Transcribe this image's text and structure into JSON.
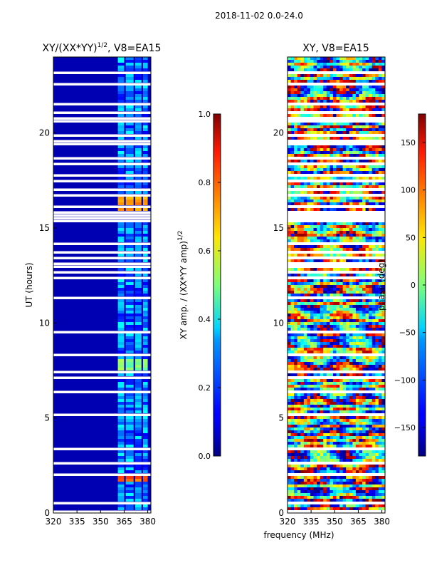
{
  "figure": {
    "suptitle": "2018-11-02 0.0-24.0",
    "shared_xlabel": "frequency (MHz)"
  },
  "chart_data": [
    {
      "type": "heatmap",
      "title_main": "XY/(XX*YY)",
      "title_sup": "1/2",
      "title_rest": ", V8=EA15",
      "ylabel": "UT (hours)",
      "xlim": [
        320,
        382
      ],
      "ylim": [
        0,
        24
      ],
      "xticks": [
        "320",
        "335",
        "350",
        "365",
        "380"
      ],
      "yticks": [
        "0",
        "5",
        "10",
        "15",
        "20"
      ],
      "colorbar": {
        "label": "XY amp. / (XX*YY amp)",
        "label_sup": "1/2",
        "range": [
          0.0,
          1.0
        ],
        "ticks": [
          "0.0",
          "0.2",
          "0.4",
          "0.6",
          "0.8",
          "1.0"
        ]
      },
      "regions": [
        {
          "name": "background",
          "freq_range": [
            320,
            382
          ],
          "value": 0.05
        },
        {
          "name": "band-1",
          "freq_range": [
            361,
            365
          ],
          "value": 0.3
        },
        {
          "name": "band-2",
          "freq_range": [
            366,
            371
          ],
          "value": 0.3
        },
        {
          "name": "band-3",
          "freq_range": [
            372,
            376
          ],
          "value": 0.28
        },
        {
          "name": "band-4",
          "freq_range": [
            377,
            380
          ],
          "value": 0.3
        },
        {
          "name": "flare-early",
          "ut_range": [
            1.6,
            2.0
          ],
          "value": 0.78
        },
        {
          "name": "flare-mid",
          "ut_range": [
            15.8,
            16.6
          ],
          "value": 0.72
        },
        {
          "name": "moderate-mid",
          "ut_range": [
            7.4,
            8.1
          ],
          "value": 0.5
        }
      ]
    },
    {
      "type": "heatmap",
      "title": "XY, V8=EA15",
      "xlim": [
        320,
        382
      ],
      "ylim": [
        0,
        24
      ],
      "xticks": [
        "320",
        "335",
        "350",
        "365",
        "380"
      ],
      "yticks": [
        "0",
        "5",
        "10",
        "15",
        "20"
      ],
      "colorbar": {
        "label": "phase (deg)",
        "range": [
          -180,
          180
        ],
        "ticks": [
          "−150",
          "−100",
          "−50",
          "0",
          "50",
          "100",
          "150"
        ]
      },
      "description_values": {
        "phase_min": -180,
        "phase_max": 180
      }
    }
  ]
}
